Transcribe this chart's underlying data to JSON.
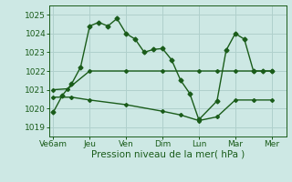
{
  "bg_color": "#cde8e4",
  "grid_color": "#b0d0cc",
  "line_color": "#1a5c1a",
  "title": "Pression niveau de la mer( hPa )",
  "ylim": [
    1018.5,
    1025.5
  ],
  "yticks": [
    1019,
    1020,
    1021,
    1022,
    1023,
    1024,
    1025
  ],
  "xtick_labels": [
    "Ve6am",
    "Jeu",
    "Ven",
    "Dim",
    "Lun",
    "Mar",
    "Mer"
  ],
  "xtick_positions": [
    0,
    2,
    4,
    6,
    8,
    10,
    12
  ],
  "xlim": [
    -0.2,
    12.8
  ],
  "line1_x": [
    0,
    0.5,
    1.0,
    1.5,
    2.0,
    2.5,
    3.0,
    3.5,
    4.0,
    4.5,
    5.0,
    5.5,
    6.0,
    6.5,
    7.0,
    7.5,
    8.0,
    9.0,
    9.5,
    10.0,
    10.5,
    11.0,
    11.5,
    12.0
  ],
  "line1_y": [
    1019.8,
    1020.7,
    1021.3,
    1022.2,
    1024.4,
    1024.6,
    1024.4,
    1024.8,
    1024.0,
    1023.7,
    1023.0,
    1023.15,
    1023.2,
    1022.6,
    1021.5,
    1020.8,
    1019.4,
    1020.4,
    1023.1,
    1024.0,
    1023.7,
    1022.0,
    1022.0,
    1022.0
  ],
  "line2_x": [
    0,
    0.8,
    2.0,
    4.0,
    6.0,
    8.0,
    9.0,
    10.0,
    11.0,
    12.0
  ],
  "line2_y": [
    1021.0,
    1021.05,
    1022.0,
    1022.0,
    1022.0,
    1022.0,
    1022.0,
    1022.0,
    1022.0,
    1022.0
  ],
  "line3_x": [
    0,
    1.0,
    2.0,
    4.0,
    6.0,
    7.0,
    8.0,
    9.0,
    10.0,
    11.0,
    12.0
  ],
  "line3_y": [
    1020.6,
    1020.6,
    1020.45,
    1020.2,
    1019.85,
    1019.65,
    1019.35,
    1019.55,
    1020.45,
    1020.45,
    1020.45
  ],
  "title_fontsize": 7.5,
  "tick_fontsize": 6.5
}
